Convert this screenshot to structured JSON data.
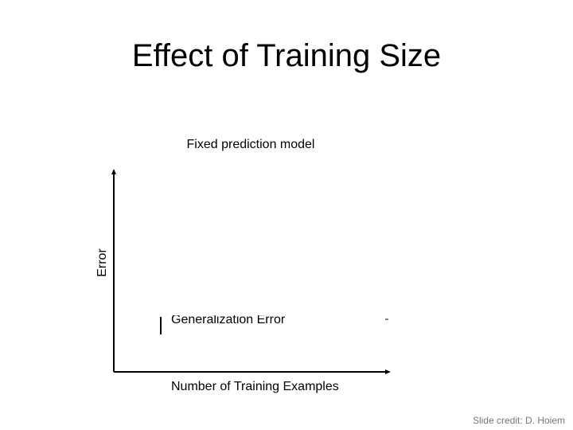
{
  "slide": {
    "title": "Effect of Training Size",
    "subtitle": "Fixed prediction model",
    "y_axis_label": "Error",
    "x_axis_label": "Number of Training Examples",
    "annotation": "Generalization Error",
    "credit": "Slide credit: D. Hoiem"
  }
}
